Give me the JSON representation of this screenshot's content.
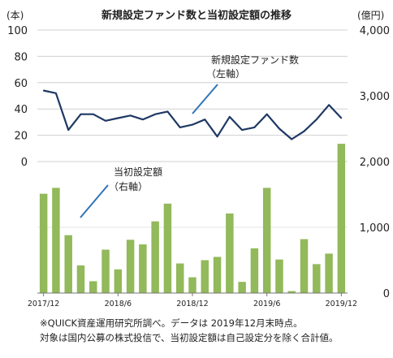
{
  "chart_data": {
    "type": "bar+line",
    "title": "新規設定ファンド数と当初設定額の推移",
    "left_axis": {
      "unit": "(本)",
      "ticks": [
        "100",
        "80",
        "60",
        "40",
        "20",
        "0"
      ],
      "range": [
        0,
        100
      ]
    },
    "right_axis": {
      "unit": "(億円)",
      "ticks": [
        "4,000",
        "3,000",
        "2,000",
        "1,000",
        "0"
      ],
      "range": [
        0,
        4000
      ]
    },
    "x_tick_labels": [
      "2017/12",
      "2018/6",
      "2018/12",
      "2019/6",
      "2019/12"
    ],
    "months": [
      "2017/12",
      "2018/1",
      "2018/2",
      "2018/3",
      "2018/4",
      "2018/5",
      "2018/6",
      "2018/7",
      "2018/8",
      "2018/9",
      "2018/10",
      "2018/11",
      "2018/12",
      "2019/1",
      "2019/2",
      "2019/3",
      "2019/4",
      "2019/5",
      "2019/6",
      "2019/7",
      "2019/8",
      "2019/9",
      "2019/10",
      "2019/11",
      "2019/12"
    ],
    "series": [
      {
        "name": "当初設定額",
        "annotation_line1": "当初設定額",
        "annotation_line2": "（右軸）",
        "axis": "right",
        "type": "bar",
        "color": "#92b95a",
        "values": [
          1510,
          1600,
          880,
          420,
          180,
          660,
          360,
          810,
          740,
          1090,
          1360,
          450,
          240,
          500,
          550,
          1210,
          170,
          680,
          1600,
          510,
          30,
          820,
          440,
          600,
          2270
        ]
      },
      {
        "name": "新規設定ファンド数",
        "annotation_line1": "新規設定ファンド数",
        "annotation_line2": "（左軸）",
        "axis": "left",
        "type": "line",
        "color": "#1f3864",
        "values": [
          54,
          52,
          24,
          36,
          36,
          31,
          33,
          35,
          32,
          36,
          38,
          26,
          28,
          32,
          19,
          34,
          24,
          26,
          36,
          25,
          17,
          23,
          32,
          43,
          33
        ]
      }
    ],
    "notes": [
      "※QUICK資産運用研究所調べ。データは 2019年12月末時点。",
      "対象は国内公募の株式投信で、当初設定額は自己設定分を除く合計値。"
    ]
  }
}
